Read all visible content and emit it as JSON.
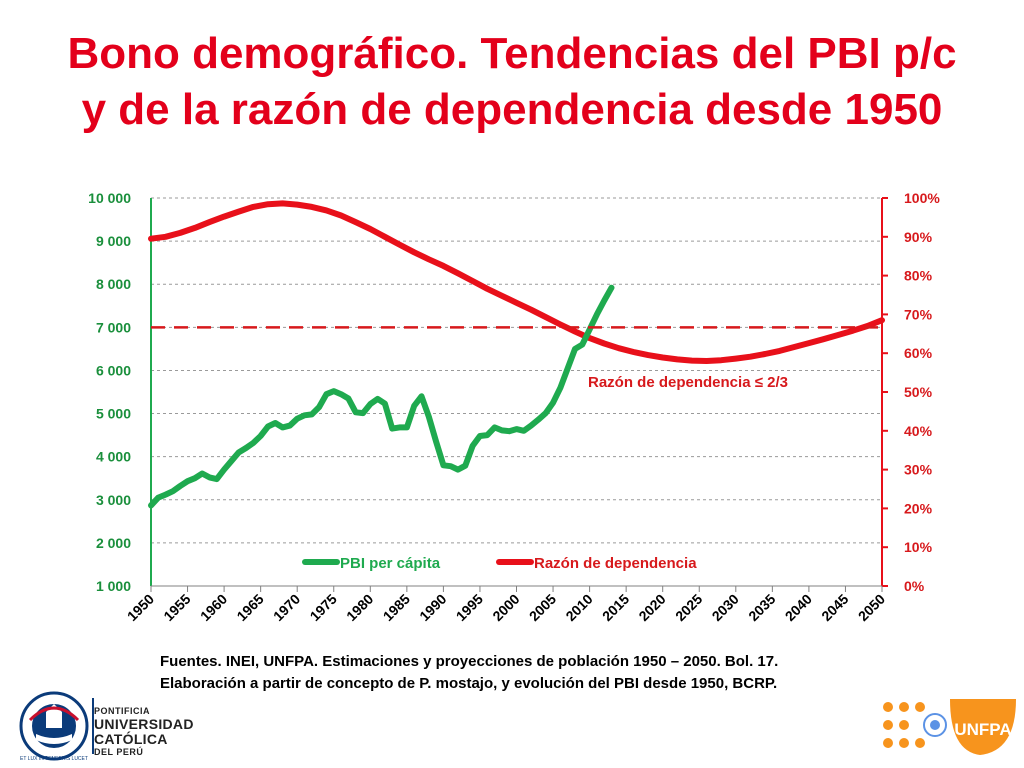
{
  "title": {
    "line1": "Bono demográfico. Tendencias del PBI p/c",
    "line2": "y de la razón de dependencia desde 1950"
  },
  "colors": {
    "title": "#e3001b",
    "gdp": "#1faa4f",
    "dependency": "#e8101a",
    "threshold": "#d7191c",
    "left_axis_text": "#1a8f3c",
    "right_axis_text": "#d7191c"
  },
  "chart_data": {
    "type": "line",
    "x_ticks": [
      1950,
      1955,
      1960,
      1965,
      1970,
      1975,
      1980,
      1985,
      1990,
      1995,
      2000,
      2005,
      2010,
      2015,
      2020,
      2025,
      2030,
      2035,
      2040,
      2045,
      2050
    ],
    "xlim": [
      1950,
      2050
    ],
    "y_left": {
      "lim": [
        1000,
        10000
      ],
      "ticks": [
        1000,
        2000,
        3000,
        4000,
        5000,
        6000,
        7000,
        8000,
        9000,
        10000
      ],
      "tick_labels": [
        "1 000",
        "2 000",
        "3 000",
        "4 000",
        "5 000",
        "6 000",
        "7 000",
        "8 000",
        "9 000",
        "10 000"
      ]
    },
    "y_right": {
      "lim": [
        0,
        100
      ],
      "ticks": [
        0,
        10,
        20,
        30,
        40,
        50,
        60,
        70,
        80,
        90,
        100
      ],
      "tick_labels": [
        "0%",
        "10%",
        "20%",
        "30%",
        "40%",
        "50%",
        "60%",
        "70%",
        "80%",
        "90%",
        "100%"
      ]
    },
    "grid": "horizontal-dashed",
    "legend_position": "bottom-center",
    "series": [
      {
        "name": "PBI per cápita",
        "axis": "left",
        "x": [
          1950,
          1951,
          1952,
          1953,
          1954,
          1955,
          1956,
          1957,
          1958,
          1959,
          1960,
          1961,
          1962,
          1963,
          1964,
          1965,
          1966,
          1967,
          1968,
          1969,
          1970,
          1971,
          1972,
          1973,
          1974,
          1975,
          1976,
          1977,
          1978,
          1979,
          1980,
          1981,
          1982,
          1983,
          1984,
          1985,
          1986,
          1987,
          1988,
          1989,
          1990,
          1991,
          1992,
          1993,
          1994,
          1995,
          1996,
          1997,
          1998,
          1999,
          2000,
          2001,
          2002,
          2003,
          2004,
          2005,
          2006,
          2007,
          2008,
          2009,
          2010,
          2011,
          2012,
          2013
        ],
        "values": [
          2870,
          3050,
          3120,
          3200,
          3320,
          3430,
          3500,
          3610,
          3520,
          3480,
          3700,
          3900,
          4100,
          4200,
          4320,
          4480,
          4700,
          4780,
          4680,
          4720,
          4880,
          4960,
          4980,
          5150,
          5450,
          5520,
          5450,
          5350,
          5030,
          5010,
          5220,
          5340,
          5230,
          4650,
          4680,
          4680,
          5180,
          5400,
          4930,
          4350,
          3800,
          3780,
          3700,
          3790,
          4250,
          4480,
          4500,
          4680,
          4610,
          4590,
          4640,
          4600,
          4720,
          4860,
          5010,
          5250,
          5600,
          6050,
          6500,
          6600,
          6950,
          7300,
          7620,
          7920
        ]
      },
      {
        "name": "Razón de dependencia",
        "axis": "right",
        "x": [
          1950,
          1952,
          1954,
          1956,
          1958,
          1960,
          1962,
          1964,
          1966,
          1968,
          1970,
          1972,
          1974,
          1976,
          1978,
          1980,
          1982,
          1984,
          1986,
          1988,
          1990,
          1992,
          1994,
          1996,
          1998,
          2000,
          2002,
          2004,
          2006,
          2008,
          2010,
          2012,
          2014,
          2016,
          2018,
          2020,
          2022,
          2024,
          2026,
          2028,
          2030,
          2032,
          2034,
          2036,
          2038,
          2040,
          2042,
          2044,
          2046,
          2048,
          2050
        ],
        "values": [
          89.5,
          90,
          91,
          92.3,
          93.8,
          95.2,
          96.5,
          97.7,
          98.4,
          98.6,
          98.3,
          97.7,
          96.8,
          95.5,
          93.8,
          92,
          90,
          88,
          86,
          84.2,
          82.5,
          80.6,
          78.6,
          76.6,
          74.8,
          73,
          71.2,
          69.3,
          67.4,
          65.6,
          63.9,
          62.5,
          61.3,
          60.3,
          59.5,
          58.9,
          58.4,
          58.1,
          58,
          58.2,
          58.6,
          59.1,
          59.8,
          60.6,
          61.6,
          62.6,
          63.6,
          64.7,
          65.8,
          67,
          68.5
        ]
      }
    ],
    "threshold": {
      "value": 66.67,
      "axis": "right",
      "label": "Razón de dependencia ≤ 2/3"
    }
  },
  "source": {
    "line1": "Fuentes. INEI, UNFPA. Estimaciones y proyecciones de población 1950 – 2050. Bol. 17.",
    "line2": "Elaboración a partir de concepto de P. mostajo, y evolución del PBI desde 1950, BCRP."
  },
  "logos": {
    "pucp": {
      "motto": "ET LUX IN TENEBRIS LUCET",
      "line1": "PONTIFICIA",
      "line2": "UNIVERSIDAD",
      "line3": "CATÓLICA",
      "line4": "DEL PERÚ",
      "icon": "pucp-seal-icon"
    },
    "unfpa": {
      "text": "UNFPA",
      "icon": "un-emblem-icon"
    }
  }
}
